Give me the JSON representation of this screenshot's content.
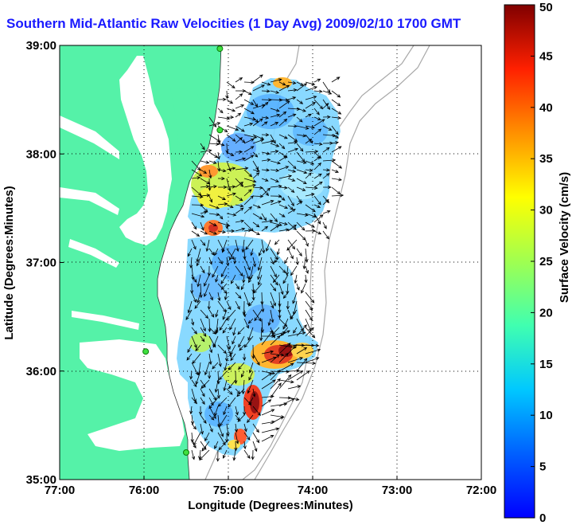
{
  "title": "Southern Mid-Atlantic Raw Velocities (1 Day Avg) 2009/02/10 1700 GMT",
  "map": {
    "xlabel": "Longitude (Degrees:Minutes)",
    "ylabel": "Latitude (Degrees:Minutes)",
    "x_ticks": [
      "77:00",
      "76:00",
      "75:00",
      "74:00",
      "73:00",
      "72:00"
    ],
    "y_ticks": [
      "39:00",
      "38:00",
      "37:00",
      "36:00",
      "35:00"
    ],
    "lon_range": [
      -77,
      -72
    ],
    "lat_range": [
      35,
      39
    ],
    "land_color": "#55f2a8",
    "grid": "dotted"
  },
  "colorbar": {
    "label": "Surface Velocity (cm/s)",
    "ticks": [
      "0",
      "5",
      "10",
      "15",
      "20",
      "25",
      "30",
      "35",
      "40",
      "45",
      "50"
    ],
    "range": [
      0,
      50
    ],
    "colormap": "jet"
  },
  "chart_data": {
    "type": "heatmap",
    "title": "Southern Mid-Atlantic Raw Velocities (1 Day Avg) 2009/02/10 1700 GMT",
    "xlabel": "Longitude (Degrees:Minutes)",
    "ylabel": "Latitude (Degrees:Minutes)",
    "xlim": [
      -77,
      -72
    ],
    "ylim": [
      35,
      39
    ],
    "colorbar_label": "Surface Velocity (cm/s)",
    "colorbar_range": [
      0,
      50
    ],
    "grid": true,
    "stations": [
      {
        "lon": -75.1,
        "lat": 38.97
      },
      {
        "lon": -75.1,
        "lat": 38.22
      },
      {
        "lon": -75.98,
        "lat": 36.18
      },
      {
        "lon": -75.5,
        "lat": 35.25
      }
    ]
  }
}
